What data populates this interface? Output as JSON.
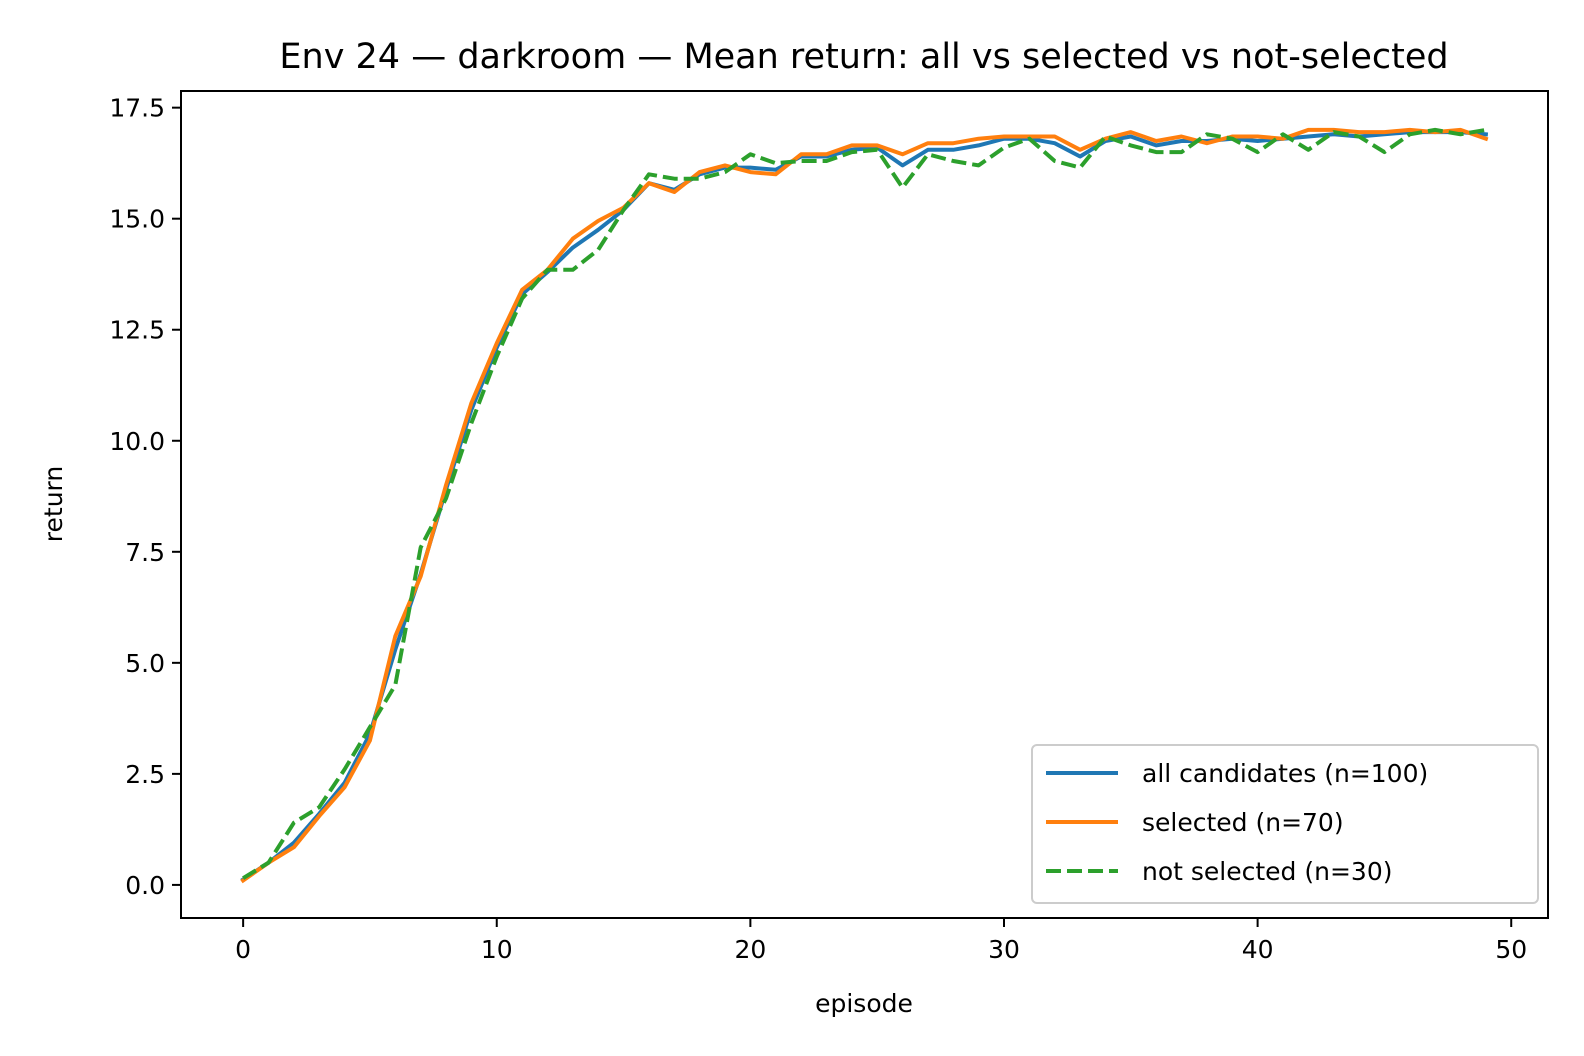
{
  "chart_data": {
    "type": "line",
    "title": "Env 24 — darkroom — Mean return: all vs selected vs not-selected",
    "xlabel": "episode",
    "ylabel": "return",
    "xlim": [
      -2.45,
      51.45
    ],
    "ylim": [
      -0.745,
      17.875
    ],
    "xticks": [
      0,
      10,
      20,
      30,
      40,
      50
    ],
    "yticks": [
      0.0,
      2.5,
      5.0,
      7.5,
      10.0,
      12.5,
      15.0,
      17.5
    ],
    "xtick_labels": [
      "0",
      "10",
      "20",
      "30",
      "40",
      "50"
    ],
    "ytick_labels": [
      "0.0",
      "2.5",
      "5.0",
      "7.5",
      "10.0",
      "12.5",
      "15.0",
      "17.5"
    ],
    "grid": false,
    "legend_position": "lower-right",
    "x": [
      0,
      1,
      2,
      3,
      4,
      5,
      6,
      7,
      8,
      9,
      10,
      11,
      12,
      13,
      14,
      15,
      16,
      17,
      18,
      19,
      20,
      21,
      22,
      23,
      24,
      25,
      26,
      27,
      28,
      29,
      30,
      31,
      32,
      33,
      34,
      35,
      36,
      37,
      38,
      39,
      40,
      41,
      42,
      43,
      44,
      45,
      46,
      47,
      48,
      49
    ],
    "series": [
      {
        "name": "all candidates (n=100)",
        "color": "#1f77b4",
        "style": "solid",
        "values": [
          0.12,
          0.5,
          0.95,
          1.6,
          2.3,
          3.4,
          5.3,
          7.0,
          8.9,
          10.7,
          12.1,
          13.3,
          13.8,
          14.35,
          14.75,
          15.2,
          15.8,
          15.65,
          16.0,
          16.15,
          16.15,
          16.1,
          16.4,
          16.4,
          16.55,
          16.6,
          16.2,
          16.55,
          16.55,
          16.65,
          16.8,
          16.8,
          16.7,
          16.4,
          16.75,
          16.85,
          16.65,
          16.75,
          16.75,
          16.8,
          16.75,
          16.8,
          16.85,
          16.9,
          16.85,
          16.9,
          16.95,
          16.95,
          16.95,
          16.9
        ]
      },
      {
        "name": "selected (n=70)",
        "color": "#ff7f0e",
        "style": "solid",
        "values": [
          0.1,
          0.5,
          0.85,
          1.55,
          2.2,
          3.25,
          5.6,
          6.95,
          9.0,
          10.85,
          12.2,
          13.4,
          13.85,
          14.55,
          14.95,
          15.25,
          15.8,
          15.6,
          16.05,
          16.2,
          16.05,
          16.0,
          16.45,
          16.45,
          16.65,
          16.65,
          16.45,
          16.7,
          16.7,
          16.8,
          16.85,
          16.85,
          16.85,
          16.55,
          16.8,
          16.95,
          16.75,
          16.85,
          16.7,
          16.85,
          16.85,
          16.8,
          17.0,
          17.0,
          16.95,
          16.95,
          17.0,
          16.95,
          17.0,
          16.8
        ]
      },
      {
        "name": "not selected (n=30)",
        "color": "#2ca02c",
        "style": "dashed",
        "values": [
          0.15,
          0.5,
          1.4,
          1.75,
          2.6,
          3.55,
          4.5,
          7.6,
          8.7,
          10.4,
          11.9,
          13.2,
          13.85,
          13.85,
          14.3,
          15.2,
          16.0,
          15.9,
          15.9,
          16.05,
          16.45,
          16.25,
          16.3,
          16.3,
          16.5,
          16.55,
          15.7,
          16.45,
          16.3,
          16.2,
          16.6,
          16.8,
          16.3,
          16.15,
          16.85,
          16.65,
          16.5,
          16.5,
          16.9,
          16.8,
          16.5,
          16.9,
          16.55,
          16.95,
          16.85,
          16.5,
          16.9,
          17.0,
          16.9,
          17.0
        ]
      }
    ]
  }
}
